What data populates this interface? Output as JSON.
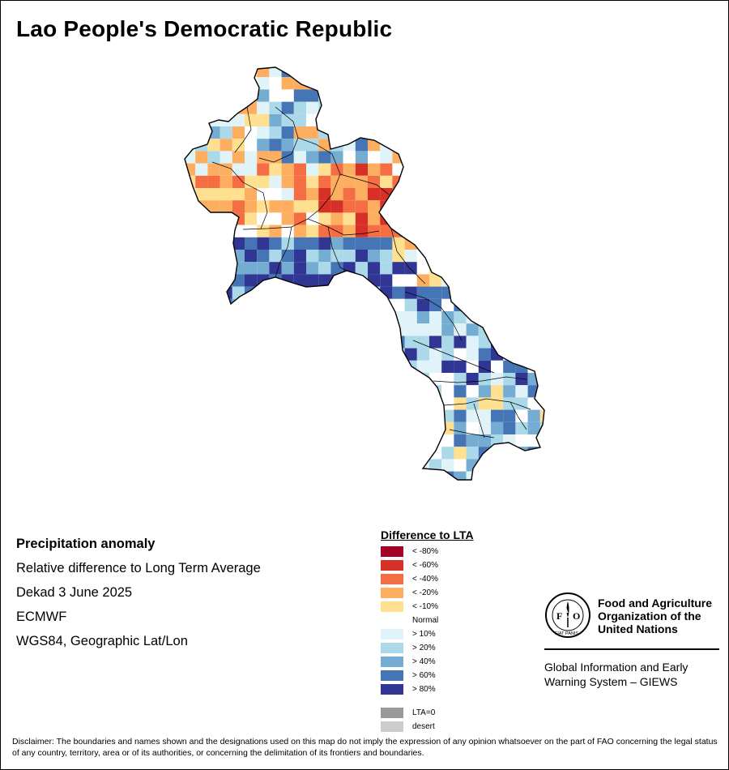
{
  "title": "Lao People's Democratic Republic",
  "info": {
    "heading": "Precipitation anomaly",
    "subtitle": "Relative difference to Long Term Average",
    "period": "Dekad 3 June 2025",
    "source": "ECMWF",
    "projection": "WGS84, Geographic Lat/Lon"
  },
  "legend": {
    "title": "Difference to LTA",
    "classes": [
      {
        "label": "< -80%",
        "color": "#a50026"
      },
      {
        "label": "< -60%",
        "color": "#d73027"
      },
      {
        "label": "< -40%",
        "color": "#f46d43"
      },
      {
        "label": "< -20%",
        "color": "#fdae61"
      },
      {
        "label": "< -10%",
        "color": "#fee090"
      },
      {
        "label": "Normal",
        "color": "#ffffff"
      },
      {
        "label": "> 10%",
        "color": "#e0f3f8"
      },
      {
        "label": "> 20%",
        "color": "#abd9e9"
      },
      {
        "label": "> 40%",
        "color": "#74add1"
      },
      {
        "label": "> 60%",
        "color": "#4575b4"
      },
      {
        "label": "> 80%",
        "color": "#313695"
      }
    ],
    "extra": [
      {
        "label": "LTA=0",
        "color": "#999999"
      },
      {
        "label": "desert",
        "color": "#cccccc"
      }
    ]
  },
  "org": {
    "name_line1": "Food and Agriculture",
    "name_line2": "Organization of the",
    "name_line3": "United Nations",
    "logo_letters": "FAO",
    "logo_motto": "FIAT PANIS",
    "system_line1": "Global Information and Early",
    "system_line2": "Warning System – GIEWS"
  },
  "disclaimer": "Disclaimer: The boundaries and names shown and the designations used on this map do not imply the expression of any opinion whatsoever on the part of FAO concerning the legal status of any country, territory, area or of its authorities, or concerning the delimitation of its frontiers and boundaries."
}
